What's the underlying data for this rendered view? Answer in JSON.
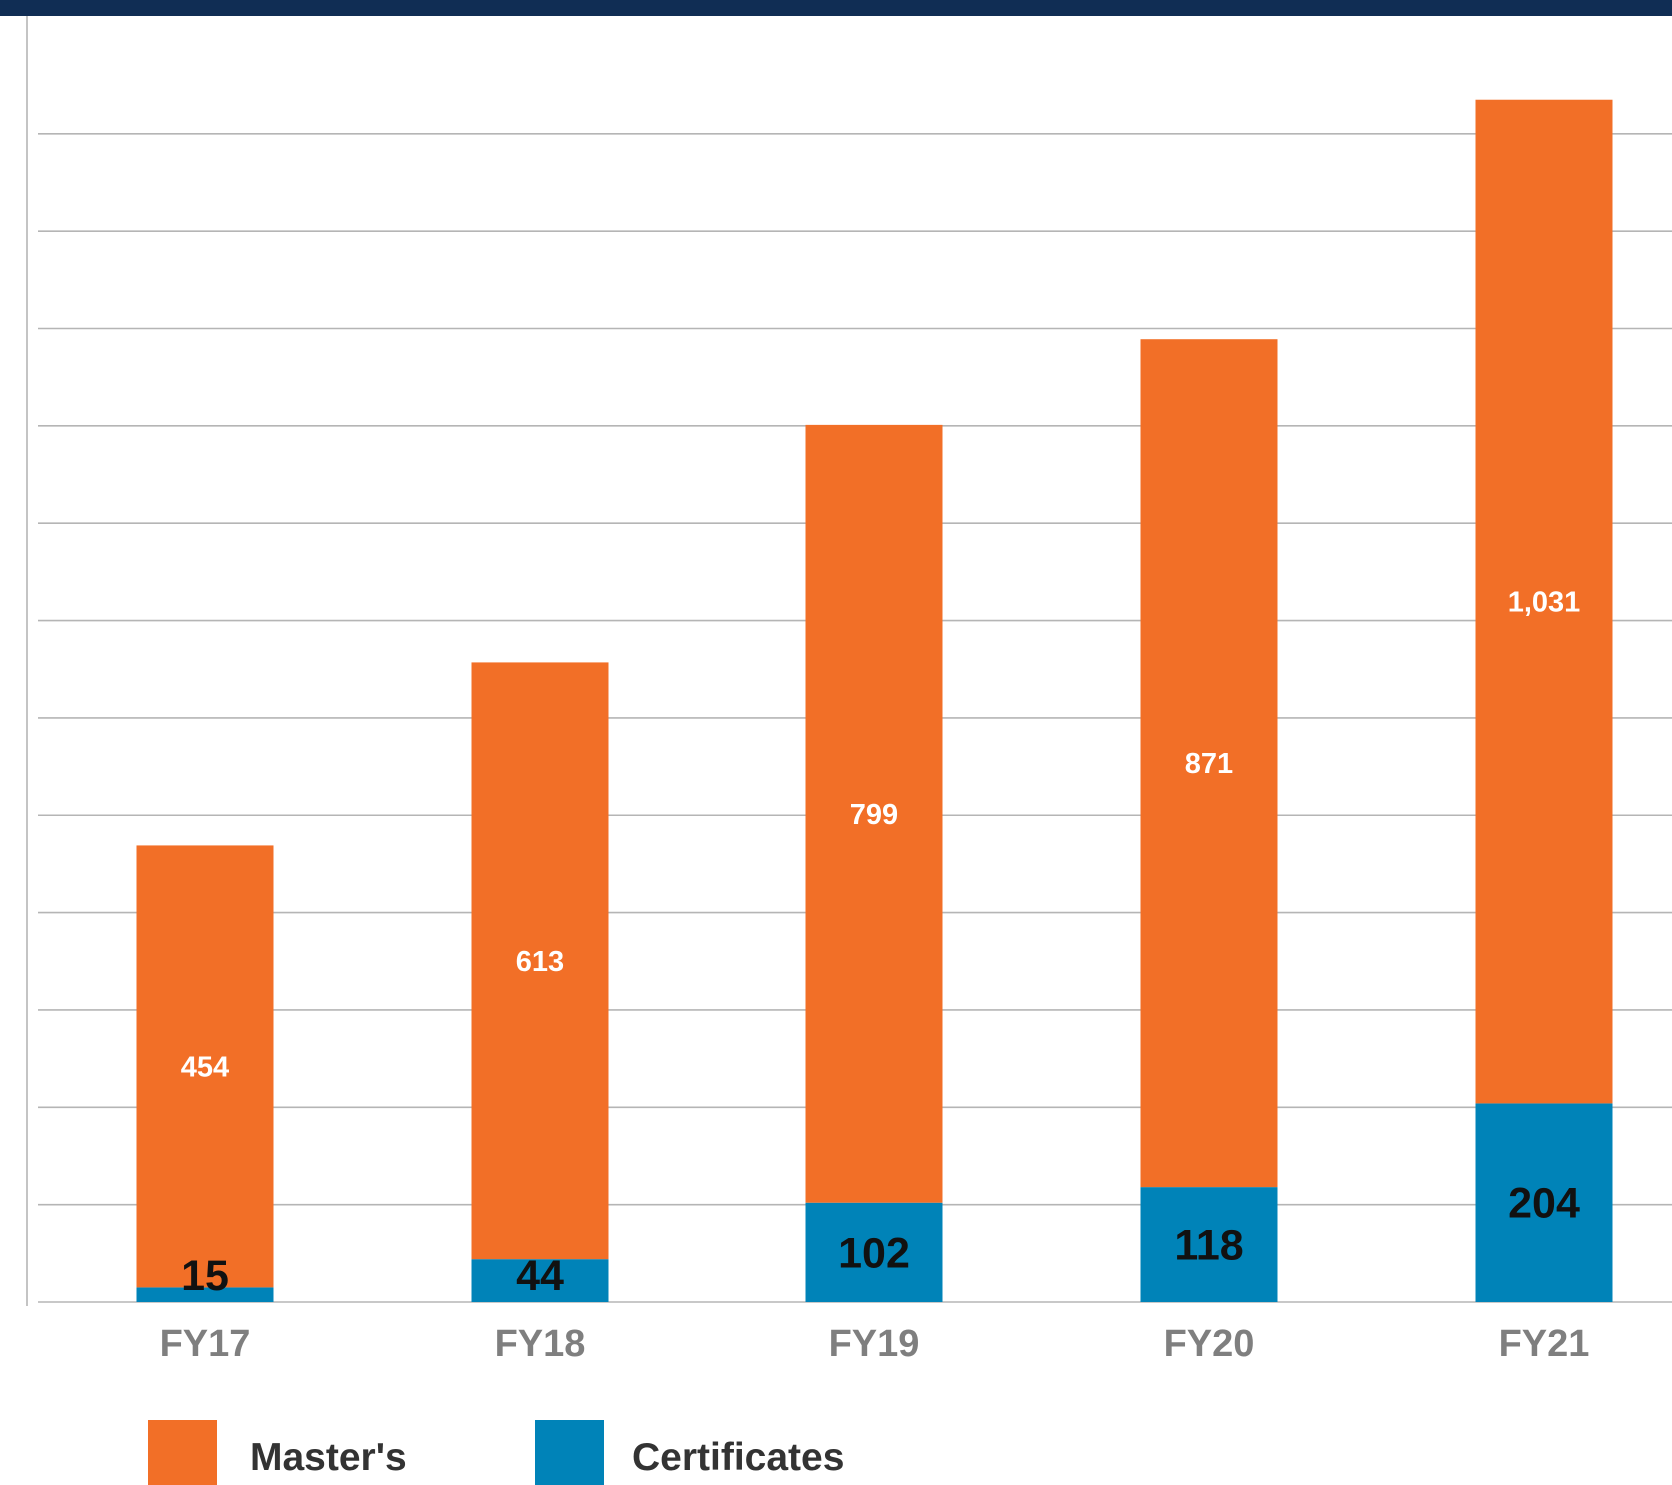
{
  "colors": {
    "top_band": "#102d54",
    "masters": "#f26f27",
    "certificates": "#0083b8",
    "grid": "#b5b5b5",
    "tick_text": "#7f7f7f",
    "legend_text": "#333333"
  },
  "chart_data": {
    "type": "bar",
    "stacked": true,
    "title": "",
    "xlabel": "",
    "ylabel": "",
    "categories": [
      "FY17",
      "FY18",
      "FY19",
      "FY20",
      "FY21"
    ],
    "ylim": [
      0,
      1200
    ],
    "grid": true,
    "legend_position": "bottom-left",
    "series": [
      {
        "name": "Certificates",
        "color": "#0083b8",
        "values": [
          15,
          44,
          102,
          118,
          204
        ],
        "labels": [
          "15",
          "44",
          "102",
          "118",
          "204"
        ]
      },
      {
        "name": "Master's",
        "color": "#f26f27",
        "values": [
          454,
          613,
          799,
          871,
          1031
        ],
        "labels": [
          "454",
          "613",
          "799",
          "871",
          "1,031"
        ]
      }
    ],
    "legend": [
      "Master's",
      "Certificates"
    ]
  }
}
